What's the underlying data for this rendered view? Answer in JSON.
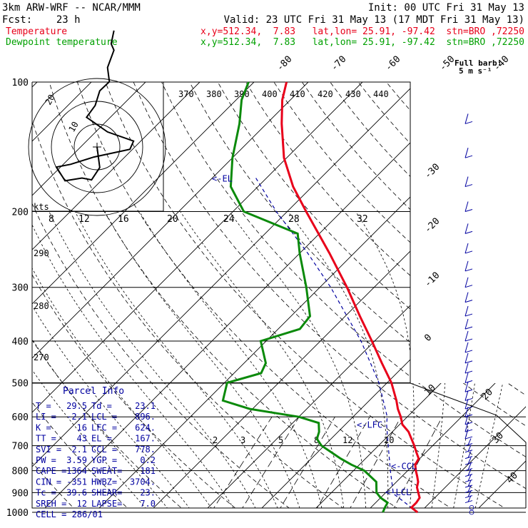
{
  "header": {
    "line1_left": "3km ARW-WRF -- NCAR/MMM",
    "line1_right": "Init: 00 UTC Fri 31 May 13",
    "line2_left": "Fcst:    23 h",
    "line2_right": "Valid: 23 UTC Fri 31 May 13 (17 MDT Fri 31 May 13)",
    "temp_label": "Temperature",
    "temp_info": "x,y=512.34,  7.83   lat,lon= 25.91, -97.42  stn=BRO ,72250",
    "dew_label": "Dewpoint temperature",
    "dew_info": "x,y=512.34,  7.83   lat,lon= 25.91, -97.42  stn=BRO ,72250"
  },
  "legend_barb": {
    "line1": "Full barb:",
    "line2": "5 m s⁻¹"
  },
  "colors": {
    "temperature": "#e8001a",
    "dewpoint": "#0b8a0b",
    "parcel": "#0000a0",
    "grid": "#000000"
  },
  "chart_data": {
    "type": "line",
    "subtype": "skew-T log-p",
    "y_axis": "pressure (hPa)",
    "pressure_ticks": [
      100,
      200,
      300,
      400,
      500,
      600,
      700,
      800,
      900,
      1000
    ],
    "isotherm_labels": [
      -80,
      -70,
      -60,
      -50,
      -40,
      -30,
      -20,
      -10,
      0,
      10,
      20,
      30,
      40
    ],
    "theta_labels": [
      370,
      380,
      390,
      400,
      410,
      420,
      430,
      440
    ],
    "theta_left_labels": [
      290,
      280,
      270
    ],
    "mixing_ratio_labels_upper": [
      8,
      12,
      16,
      20,
      24,
      28,
      32
    ],
    "mixing_ratio_labels_lower": [
      2,
      3,
      5,
      8,
      12,
      20
    ],
    "series": [
      {
        "name": "Temperature",
        "points": [
          [
            1000,
            29.5
          ],
          [
            975,
            27.5
          ],
          [
            950,
            27.5
          ],
          [
            925,
            27.2
          ],
          [
            900,
            26.0
          ],
          [
            875,
            24.8
          ],
          [
            850,
            24.0
          ],
          [
            825,
            22.8
          ],
          [
            800,
            21.5
          ],
          [
            775,
            20.3
          ],
          [
            750,
            19.8
          ],
          [
            725,
            18.2
          ],
          [
            700,
            16.6
          ],
          [
            650,
            13.0
          ],
          [
            625,
            10.5
          ],
          [
            600,
            8.8
          ],
          [
            575,
            6.8
          ],
          [
            550,
            5.0
          ],
          [
            500,
            0.8
          ],
          [
            450,
            -4.6
          ],
          [
            400,
            -10.5
          ],
          [
            350,
            -17.3
          ],
          [
            300,
            -25.0
          ],
          [
            250,
            -34.5
          ],
          [
            200,
            -46.5
          ],
          [
            175,
            -53.5
          ],
          [
            150,
            -60.5
          ],
          [
            125,
            -67.2
          ],
          [
            110,
            -71.5
          ],
          [
            100,
            -74.0
          ]
        ]
      },
      {
        "name": "Dewpoint temperature",
        "points": [
          [
            1000,
            23.1
          ],
          [
            975,
            22.6
          ],
          [
            950,
            22.2
          ],
          [
            925,
            20.0
          ],
          [
            900,
            18.3
          ],
          [
            850,
            16.3
          ],
          [
            800,
            12.0
          ],
          [
            775,
            8.5
          ],
          [
            750,
            5.4
          ],
          [
            700,
            -0.5
          ],
          [
            675,
            -2.6
          ],
          [
            650,
            -3.5
          ],
          [
            620,
            -5.2
          ],
          [
            600,
            -10.0
          ],
          [
            575,
            -20.5
          ],
          [
            550,
            -27.0
          ],
          [
            500,
            -29.5
          ],
          [
            475,
            -25.0
          ],
          [
            450,
            -26.0
          ],
          [
            400,
            -31.0
          ],
          [
            375,
            -26.0
          ],
          [
            350,
            -26.5
          ],
          [
            300,
            -32.5
          ],
          [
            250,
            -40.0
          ],
          [
            225,
            -44.0
          ],
          [
            200,
            -58.0
          ],
          [
            175,
            -65.0
          ],
          [
            150,
            -70.0
          ],
          [
            125,
            -75.0
          ],
          [
            110,
            -79.0
          ],
          [
            100,
            -81.0
          ]
        ]
      },
      {
        "name": "Parcel",
        "points": [
          [
            1000,
            29.5
          ],
          [
            905,
            21.6
          ],
          [
            800,
            16.8
          ],
          [
            700,
            11.8
          ],
          [
            625,
            7.6
          ],
          [
            600,
            6.3
          ],
          [
            500,
            -1.5
          ],
          [
            400,
            -12.5
          ],
          [
            300,
            -28.0
          ],
          [
            250,
            -38.5
          ],
          [
            200,
            -52.0
          ],
          [
            167,
            -62.0
          ]
        ]
      }
    ],
    "levels": [
      {
        "label": "<-EL",
        "p": 167
      },
      {
        "label": "<-LFC",
        "p": 624
      },
      {
        "label": "<-CCL",
        "p": 778
      },
      {
        "label": "<-LCL",
        "p": 896
      }
    ],
    "hodograph": {
      "units": "kts",
      "ring_labels": [
        "10",
        "20"
      ],
      "points": [
        [
          0,
          0
        ],
        [
          0.6,
          -4.5
        ],
        [
          -1.2,
          -7.2
        ],
        [
          -3.3,
          -6.8
        ],
        [
          -7.0,
          -7.4
        ],
        [
          -8.9,
          -4.4
        ],
        [
          -5.8,
          -3.8
        ],
        [
          -0.7,
          -2.2
        ],
        [
          7.2,
          -0.5
        ],
        [
          8.0,
          1.3
        ],
        [
          2.3,
          3.3
        ],
        [
          -2.3,
          6.5
        ],
        [
          -0.4,
          9.1
        ],
        [
          0.6,
          12.3
        ],
        [
          2.7,
          14.3
        ],
        [
          2.3,
          17.4
        ],
        [
          3.7,
          21.2
        ],
        [
          3.1,
          22.6
        ],
        [
          3.7,
          25.5
        ]
      ],
      "storm_motion": [
        0,
        0
      ]
    }
  },
  "parcel_info": {
    "title": "Parcel Info",
    "rows": [
      [
        "T  =",
        "29.5",
        "Td =",
        "23.1"
      ],
      [
        "LI =",
        "-2.1",
        "LCL =",
        "896."
      ],
      [
        "K  =",
        "16",
        "LFC =",
        "624."
      ],
      [
        "TT =",
        "43",
        "EL =",
        "167."
      ],
      [
        "SVI =",
        "2.1",
        "CCL =",
        "778."
      ],
      [
        "PW =",
        "3.59",
        "YGP =",
        "0.2"
      ],
      [
        "CAPE =",
        "1364",
        "SWEAT=",
        "181"
      ],
      [
        "CIN =",
        "-351",
        "HWBZ=",
        "3704."
      ],
      [
        "Tc =",
        "39.6",
        "SHEAR=",
        "23."
      ],
      [
        "SREH =",
        "12",
        "LAPSE=",
        "7.0"
      ]
    ],
    "cell": "CELL = 286/01"
  }
}
